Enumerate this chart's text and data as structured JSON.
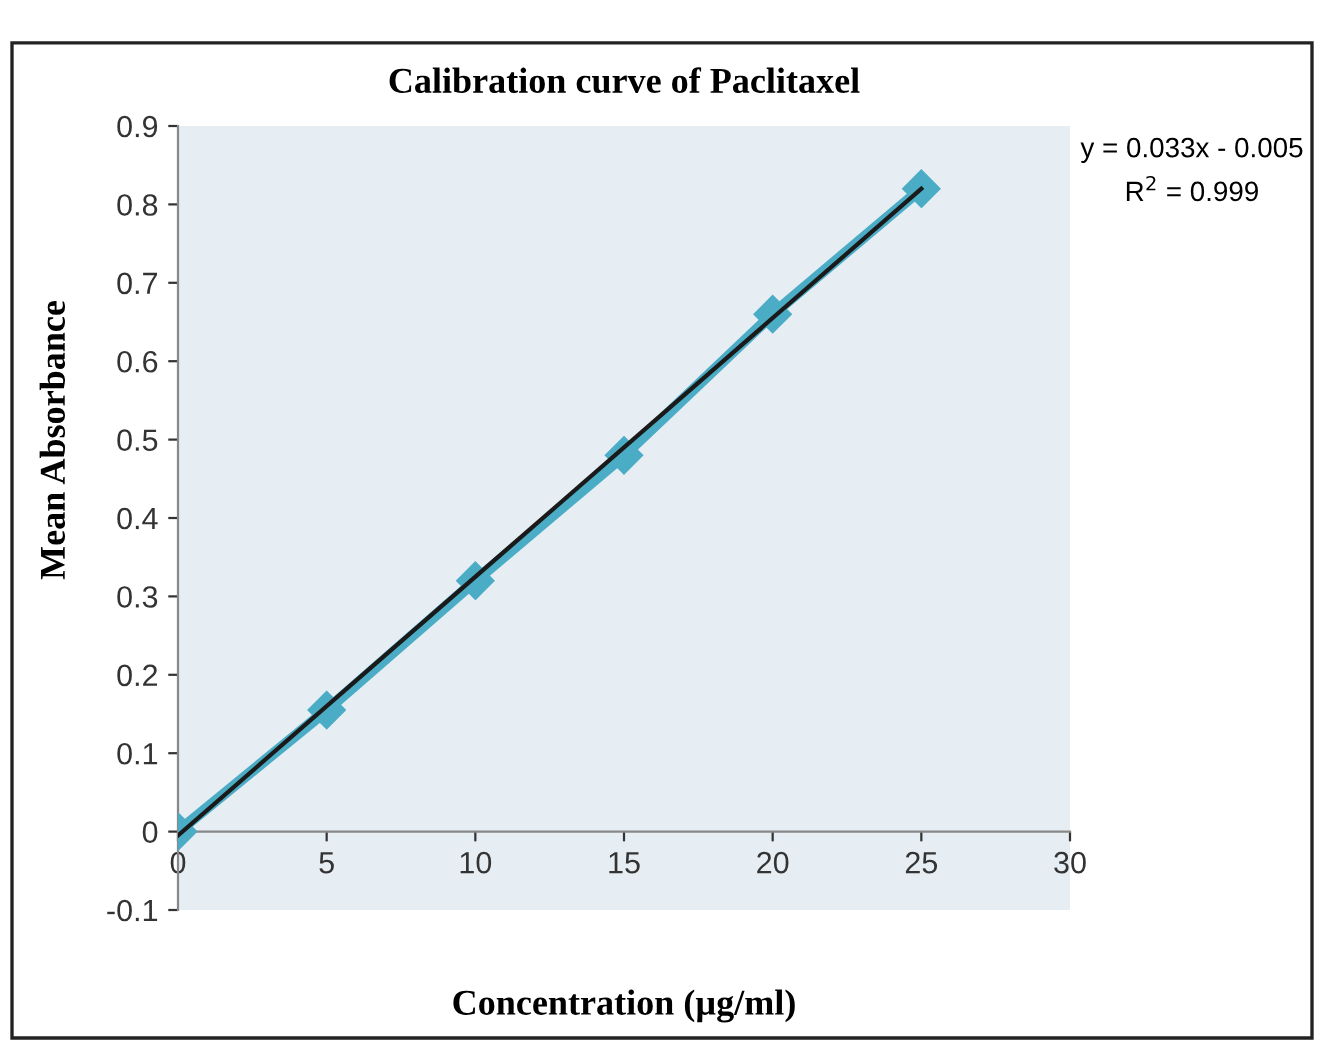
{
  "chart_data": {
    "type": "line",
    "title": "Calibration curve of Paclitaxel",
    "xlabel": "Concentration (µg/ml)",
    "ylabel": "Mean Absorbance",
    "x": [
      0,
      5,
      10,
      15,
      20,
      25
    ],
    "series": [
      {
        "color": "#4bacc6",
        "values": [
          0,
          0.155,
          0.32,
          0.48,
          0.66,
          0.82
        ],
        "marker": "diamond"
      },
      {
        "type": "line",
        "color": "#1a1a1a",
        "x": [
          0,
          25
        ],
        "values": [
          -0.005,
          0.82
        ],
        "marker": "none"
      }
    ],
    "xlim": [
      0,
      30
    ],
    "xticks": [
      0,
      5,
      10,
      15,
      20,
      25,
      30
    ],
    "ylim": [
      -0.1,
      0.9
    ],
    "yticks": [
      -0.1,
      0,
      0.1,
      0.2,
      0.3,
      0.4,
      0.5,
      0.6,
      0.7,
      0.8,
      0.9
    ],
    "grid": false,
    "annotations": [
      "y = 0.033x - 0.005",
      "R$^{2}$ = 0.999"
    ]
  }
}
